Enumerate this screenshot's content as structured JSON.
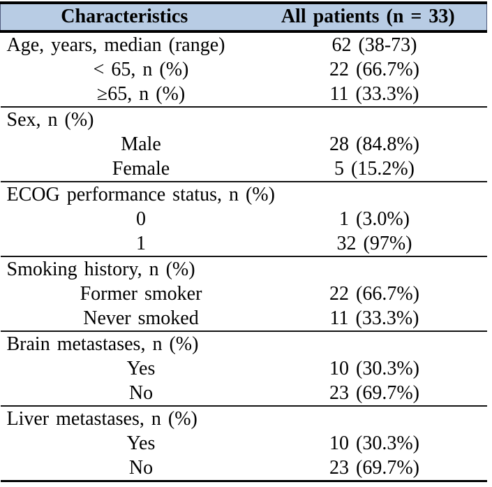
{
  "colors": {
    "header_bg": "#b8cce4",
    "border": "#000000",
    "text": "#000000"
  },
  "table": {
    "header": {
      "characteristics": "Characteristics",
      "all_patients": "All patients (n = 33)"
    },
    "sections": [
      {
        "rows": [
          {
            "label": "Age, years, median (range)",
            "value": "62 (38-73)",
            "indent": false
          },
          {
            "label": "< 65, n (%)",
            "value": "22 (66.7%)",
            "indent": true
          },
          {
            "label": "≥65, n (%)",
            "value": "11 (33.3%)",
            "indent": true
          }
        ]
      },
      {
        "rows": [
          {
            "label": "Sex, n (%)",
            "value": "",
            "indent": false
          },
          {
            "label": "Male",
            "value": "28 (84.8%)",
            "indent": true
          },
          {
            "label": "Female",
            "value": "5 (15.2%)",
            "indent": true
          }
        ]
      },
      {
        "rows": [
          {
            "label": "ECOG performance status, n (%)",
            "value": "",
            "indent": false
          },
          {
            "label": "0",
            "value": "1 (3.0%)",
            "indent": true
          },
          {
            "label": "1",
            "value": "32 (97%)",
            "indent": true
          }
        ]
      },
      {
        "rows": [
          {
            "label": "Smoking history, n (%)",
            "value": "",
            "indent": false
          },
          {
            "label": "Former smoker",
            "value": "22 (66.7%)",
            "indent": true
          },
          {
            "label": "Never smoked",
            "value": "11 (33.3%)",
            "indent": true
          }
        ]
      },
      {
        "rows": [
          {
            "label": "Brain metastases, n (%)",
            "value": "",
            "indent": false
          },
          {
            "label": "Yes",
            "value": "10 (30.3%)",
            "indent": true
          },
          {
            "label": "No",
            "value": "23 (69.7%)",
            "indent": true
          }
        ]
      },
      {
        "rows": [
          {
            "label": "Liver metastases, n (%)",
            "value": "",
            "indent": false
          },
          {
            "label": "Yes",
            "value": "10 (30.3%)",
            "indent": true
          },
          {
            "label": "No",
            "value": "23 (69.7%)",
            "indent": true
          }
        ]
      }
    ]
  }
}
